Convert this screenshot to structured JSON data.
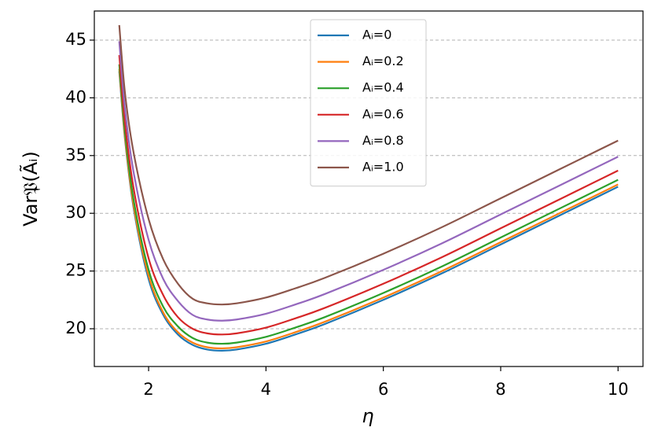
{
  "chart_data": {
    "type": "line",
    "xlabel": "η",
    "ylabel": "Var𝔓(Ãᵢ)",
    "x": [
      1.5,
      1.6,
      1.75,
      2,
      2.25,
      2.5,
      2.75,
      3,
      3.25,
      3.5,
      4,
      4.5,
      5,
      6,
      7,
      8,
      9,
      10
    ],
    "series": [
      {
        "name": "Aᵢ=0",
        "color": "#1f77b4",
        "values": [
          42.3,
          36.3,
          30.3,
          24.3,
          21.2,
          19.5,
          18.6,
          18.2,
          18.1,
          18.2,
          18.7,
          19.5,
          20.4,
          22.5,
          24.8,
          27.3,
          29.8,
          32.3
        ]
      },
      {
        "name": "Aᵢ=0.2",
        "color": "#ff7f0e",
        "values": [
          42.5,
          36.5,
          30.5,
          24.6,
          21.4,
          19.7,
          18.8,
          18.4,
          18.3,
          18.4,
          18.9,
          19.7,
          20.6,
          22.7,
          25.0,
          27.5,
          30.0,
          32.5
        ]
      },
      {
        "name": "Aᵢ=0.4",
        "color": "#2ca02c",
        "values": [
          42.9,
          36.9,
          31.0,
          25.1,
          21.9,
          20.2,
          19.2,
          18.8,
          18.7,
          18.8,
          19.3,
          20.1,
          21.0,
          23.1,
          25.4,
          27.9,
          30.4,
          32.9
        ]
      },
      {
        "name": "Aᵢ=0.6",
        "color": "#d62728",
        "values": [
          43.7,
          37.7,
          32.0,
          26.1,
          22.9,
          21.0,
          20.0,
          19.6,
          19.5,
          19.6,
          20.1,
          20.9,
          21.8,
          23.9,
          26.2,
          28.7,
          31.2,
          33.7
        ]
      },
      {
        "name": "Aᵢ=0.8",
        "color": "#9467bd",
        "values": [
          44.9,
          38.9,
          33.4,
          27.7,
          24.3,
          22.4,
          21.2,
          20.8,
          20.7,
          20.8,
          21.3,
          22.1,
          23.0,
          25.1,
          27.4,
          29.9,
          32.4,
          34.9
        ]
      },
      {
        "name": "Aᵢ=1.0",
        "color": "#8c564b",
        "values": [
          46.3,
          40.3,
          35.1,
          29.5,
          26.0,
          23.9,
          22.6,
          22.2,
          22.1,
          22.2,
          22.7,
          23.5,
          24.4,
          26.5,
          28.8,
          31.3,
          33.8,
          36.3
        ]
      }
    ],
    "xlim": [
      1.075,
      10.425
    ],
    "xticks": [
      2,
      4,
      6,
      8,
      10
    ],
    "ylim": [
      16.73,
      47.52
    ],
    "yticks": [
      20,
      25,
      30,
      35,
      40,
      45
    ],
    "grid": "y",
    "legend": "upper center"
  }
}
